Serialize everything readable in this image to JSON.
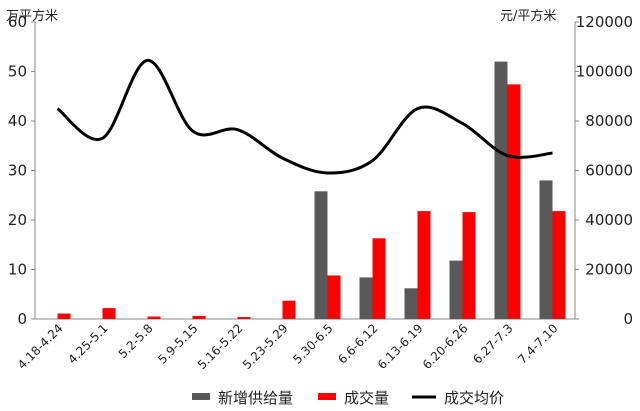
{
  "chart_data": {
    "type": "bar",
    "left_unit": "万平方米",
    "right_unit": "元/平方米",
    "categories": [
      "4.18-4.24",
      "4.25-5.1",
      "5.2-5.8",
      "5.9-5.15",
      "5.16-5.22",
      "5.23-5.29",
      "5.30-6.5",
      "6.6-6.12",
      "6.13-6.19",
      "6.20-6.26",
      "6.27-7.3",
      "7.4-7.10"
    ],
    "left_axis": {
      "ylim": [
        0,
        60
      ],
      "ticks": [
        "0",
        "10",
        "20",
        "30",
        "40",
        "50",
        "60"
      ]
    },
    "right_axis": {
      "ylim": [
        0,
        120000
      ],
      "ticks": [
        "0",
        "20000",
        "40000",
        "60000",
        "80000",
        "100000",
        "120000"
      ]
    },
    "series": [
      {
        "name": "新增供给量",
        "type": "bar",
        "axis": "left",
        "color": "#595959",
        "values": [
          0,
          0,
          0,
          0,
          0,
          0,
          25.8,
          8.4,
          6.2,
          11.8,
          52.0,
          28.0
        ]
      },
      {
        "name": "成交量",
        "type": "bar",
        "axis": "left",
        "color": "#ff0000",
        "values": [
          1.1,
          2.2,
          0.5,
          0.6,
          0.4,
          3.7,
          8.8,
          16.3,
          21.8,
          21.6,
          47.4,
          21.8
        ]
      },
      {
        "name": "成交均价",
        "type": "line",
        "axis": "right",
        "color": "#000000",
        "values": [
          85000,
          73000,
          104500,
          76000,
          76500,
          65000,
          59000,
          64000,
          85000,
          79000,
          66000,
          67000
        ]
      }
    ],
    "grid": false,
    "legend": "bottom"
  }
}
